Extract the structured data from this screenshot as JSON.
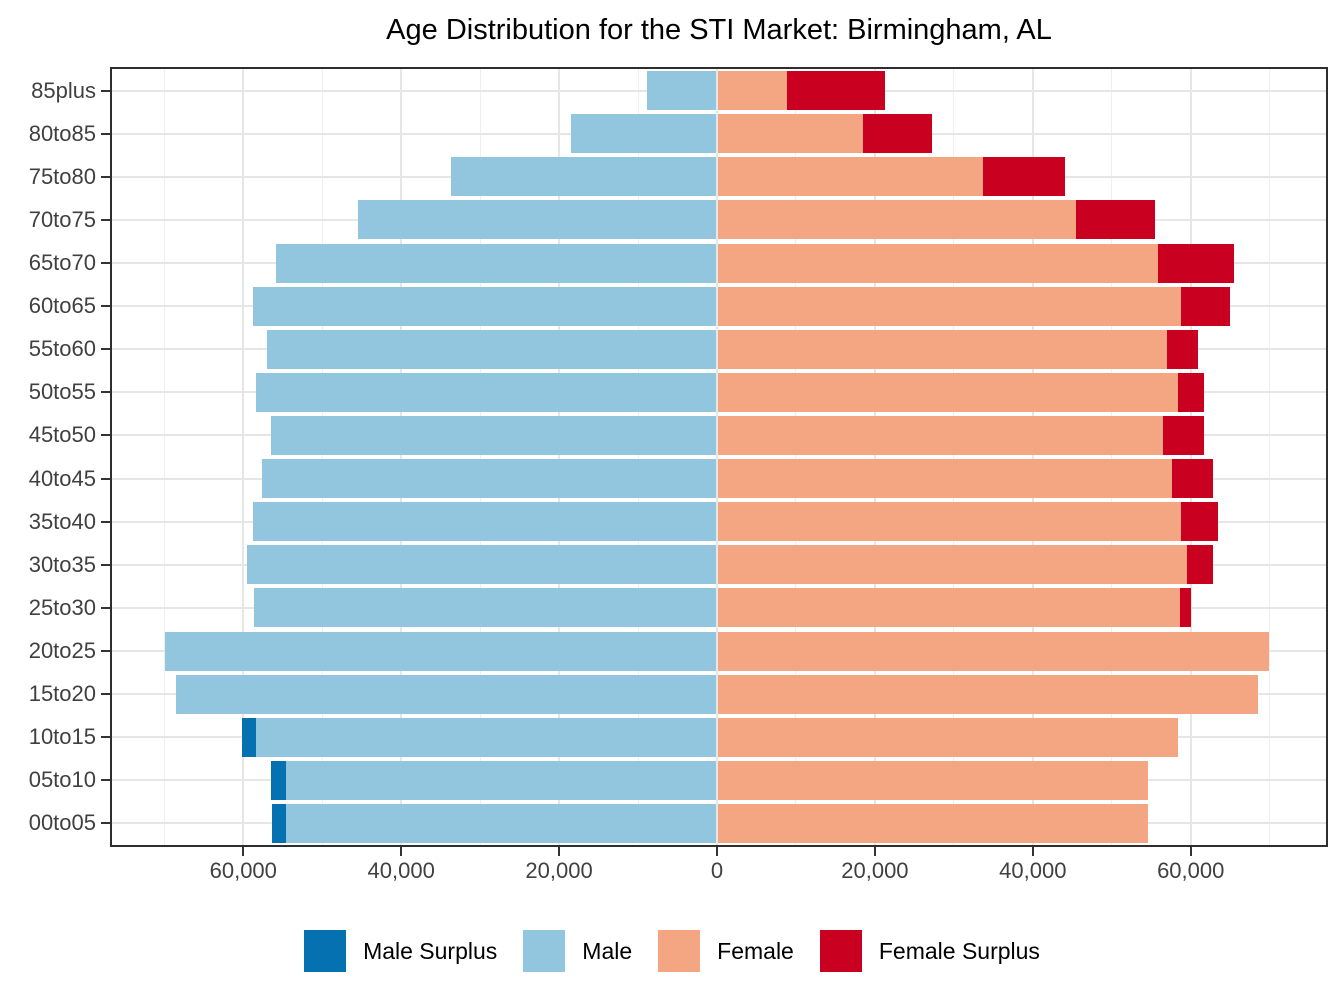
{
  "chart": {
    "title": "Age Distribution for the STI Market: Birmingham, AL"
  },
  "chart_data": {
    "type": "bar",
    "subtype": "population-pyramid",
    "title": "Age Distribution for the STI Market: Birmingham, AL",
    "xlabel": "",
    "ylabel": "",
    "categories": [
      "85plus",
      "80to85",
      "75to80",
      "70to75",
      "65to70",
      "60to65",
      "55to60",
      "50to55",
      "45to50",
      "40to45",
      "35to40",
      "30to35",
      "25to30",
      "20to25",
      "15to20",
      "10to15",
      "05to10",
      "00to05"
    ],
    "series": [
      {
        "name": "Male",
        "side": "left",
        "values": [
          8800,
          18400,
          33600,
          45400,
          55700,
          58700,
          56900,
          58300,
          56400,
          57500,
          58700,
          59400,
          58500,
          69800,
          68400,
          60000,
          56400,
          56200
        ]
      },
      {
        "name": "Female",
        "side": "right",
        "values": [
          21100,
          27100,
          43900,
          55400,
          65400,
          64900,
          60800,
          61600,
          61500,
          62700,
          63300,
          62700,
          59900,
          69800,
          68400,
          58200,
          54400,
          54500
        ]
      }
    ],
    "segment_logic": "matched = min(male,female); male_surplus = male - female when positive (dark blue, outer left); female_surplus = female - male when positive (dark red, outer right)",
    "x_ticks": [
      {
        "value": -60000,
        "label": "60,000"
      },
      {
        "value": -40000,
        "label": "40,000"
      },
      {
        "value": -20000,
        "label": "20,000"
      },
      {
        "value": 0,
        "label": "0"
      },
      {
        "value": 20000,
        "label": "20,000"
      },
      {
        "value": 40000,
        "label": "40,000"
      },
      {
        "value": 60000,
        "label": "60,000"
      }
    ],
    "x_minor_step": 10000,
    "xlim": [
      -76500,
      76500
    ],
    "grid": {
      "vertical_major": true,
      "vertical_minor": true,
      "horizontal_major_per_category": true
    },
    "legend": {
      "position": "bottom",
      "entries": [
        {
          "label": "Male Surplus",
          "color": "#0571b0"
        },
        {
          "label": "Male",
          "color": "#92c5de"
        },
        {
          "label": "Female",
          "color": "#f4a582"
        },
        {
          "label": "Female Surplus",
          "color": "#ca0020"
        }
      ]
    },
    "colors": {
      "male_surplus": "#0571b0",
      "male": "#92c5de",
      "female": "#f4a582",
      "female_surplus": "#ca0020",
      "gridline_major": "#e6e6e6",
      "gridline_minor": "#efefef",
      "panel_border": "#2e2e2e",
      "axis_text": "#404040",
      "title_text": "#000000"
    }
  }
}
